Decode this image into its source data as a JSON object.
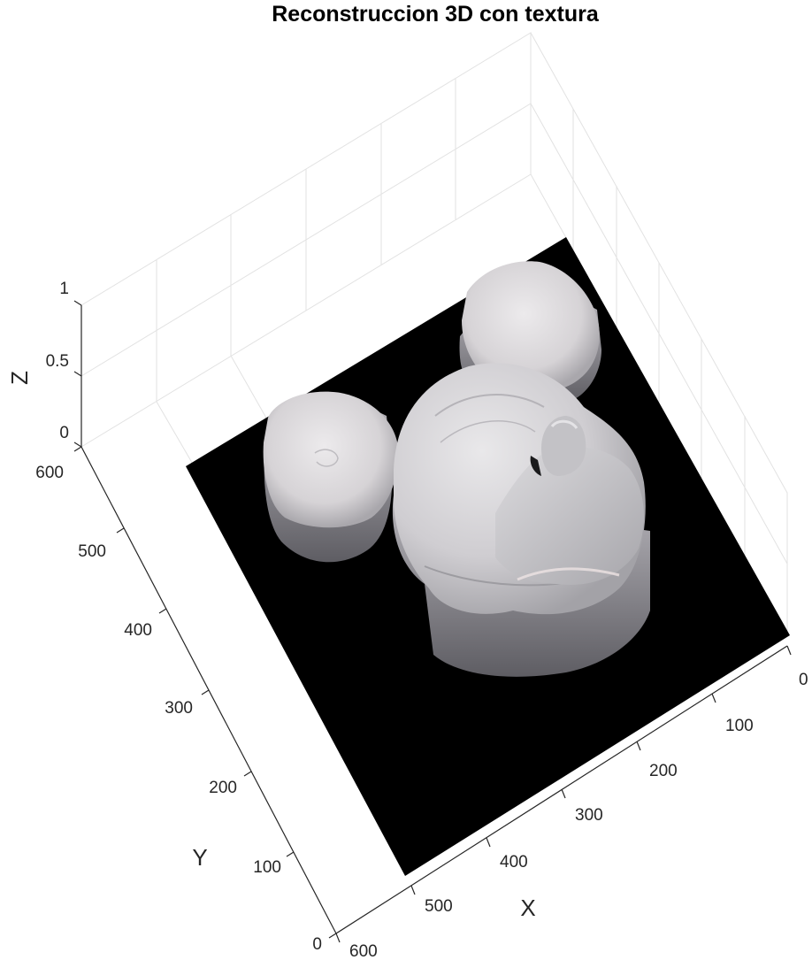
{
  "chart_data": {
    "type": "surface",
    "title": "Reconstruccion 3D con textura",
    "xlabel": "X",
    "ylabel": "Y",
    "zlabel": "Z",
    "xlim": [
      0,
      600
    ],
    "ylim": [
      0,
      600
    ],
    "zlim": [
      0,
      1
    ],
    "x_ticks": [
      "0",
      "100",
      "200",
      "300",
      "400",
      "500",
      "600"
    ],
    "y_ticks": [
      "0",
      "100",
      "200",
      "300",
      "400",
      "500",
      "600"
    ],
    "z_ticks": [
      "0",
      "0.5",
      "1"
    ],
    "grid": true,
    "colors": {
      "background": "#000000",
      "surface_light": "#e6e4e6",
      "surface_mid": "#c9c7cb",
      "surface_dark": "#8e8d92",
      "grid": "#e2e2e2",
      "axis": "#262626"
    }
  }
}
